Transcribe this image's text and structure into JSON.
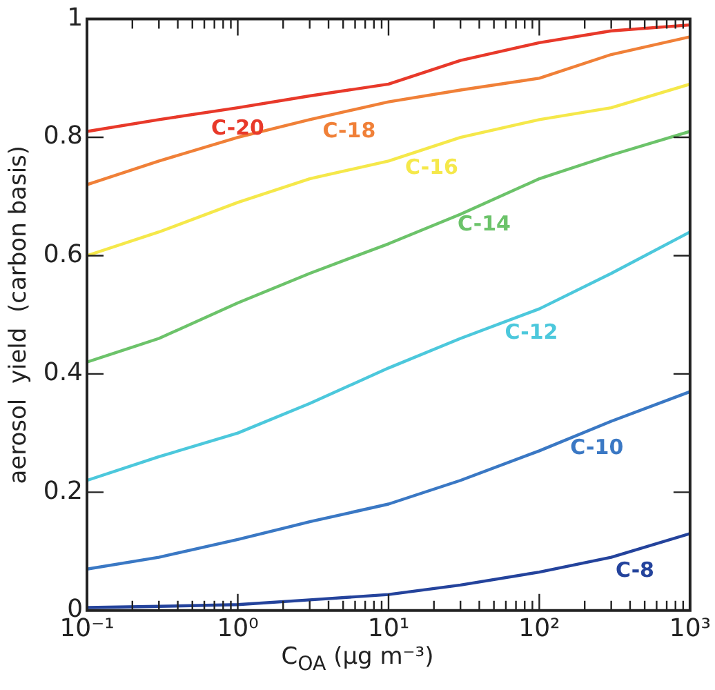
{
  "chart_data": {
    "type": "line",
    "xlabel": "C$_{OA}$ (µg m⁻³)",
    "ylabel": "aerosol  yield  (carbon basis)",
    "x": [
      0.1,
      0.3,
      1,
      3,
      10,
      30,
      100,
      300,
      1000
    ],
    "series": [
      {
        "name": "C-20",
        "color": "#e8392a",
        "values": [
          0.81,
          0.83,
          0.85,
          0.87,
          0.89,
          0.93,
          0.96,
          0.98,
          0.99
        ]
      },
      {
        "name": "C-18",
        "color": "#f08038",
        "values": [
          0.72,
          0.76,
          0.8,
          0.83,
          0.86,
          0.88,
          0.9,
          0.94,
          0.97
        ]
      },
      {
        "name": "C-16",
        "color": "#f5e84a",
        "values": [
          0.6,
          0.64,
          0.69,
          0.73,
          0.76,
          0.8,
          0.83,
          0.85,
          0.89
        ]
      },
      {
        "name": "C-14",
        "color": "#6cc36a",
        "values": [
          0.42,
          0.46,
          0.52,
          0.57,
          0.62,
          0.67,
          0.73,
          0.77,
          0.81
        ]
      },
      {
        "name": "C-12",
        "color": "#4cc8dc",
        "values": [
          0.22,
          0.26,
          0.3,
          0.35,
          0.41,
          0.46,
          0.51,
          0.57,
          0.64
        ]
      },
      {
        "name": "C-10",
        "color": "#3a78c4",
        "values": [
          0.07,
          0.09,
          0.12,
          0.15,
          0.18,
          0.22,
          0.27,
          0.32,
          0.37
        ]
      },
      {
        "name": "C-8",
        "color": "#24439c",
        "values": [
          0.005,
          0.007,
          0.01,
          0.018,
          0.027,
          0.043,
          0.065,
          0.09,
          0.13
        ]
      }
    ],
    "log": "x",
    "xlim": [
      0.1,
      1000
    ],
    "xticks": [
      {
        "value": 0.1,
        "label": "10⁻¹"
      },
      {
        "value": 0.2,
        "label": null
      },
      {
        "value": 0.3,
        "label": null
      },
      {
        "value": 0.4,
        "label": null
      },
      {
        "value": 0.5,
        "label": null
      },
      {
        "value": 0.6,
        "label": null
      },
      {
        "value": 0.7,
        "label": null
      },
      {
        "value": 0.8,
        "label": null
      },
      {
        "value": 0.9,
        "label": null
      },
      {
        "value": 1,
        "label": "10⁰"
      },
      {
        "value": 2,
        "label": null
      },
      {
        "value": 3,
        "label": null
      },
      {
        "value": 4,
        "label": null
      },
      {
        "value": 5,
        "label": null
      },
      {
        "value": 6,
        "label": null
      },
      {
        "value": 7,
        "label": null
      },
      {
        "value": 8,
        "label": null
      },
      {
        "value": 9,
        "label": null
      },
      {
        "value": 10,
        "label": "10¹"
      },
      {
        "value": 20,
        "label": null
      },
      {
        "value": 30,
        "label": null
      },
      {
        "value": 40,
        "label": null
      },
      {
        "value": 50,
        "label": null
      },
      {
        "value": 60,
        "label": null
      },
      {
        "value": 70,
        "label": null
      },
      {
        "value": 80,
        "label": null
      },
      {
        "value": 90,
        "label": null
      },
      {
        "value": 100,
        "label": "10²"
      },
      {
        "value": 200,
        "label": null
      },
      {
        "value": 300,
        "label": null
      },
      {
        "value": 400,
        "label": null
      },
      {
        "value": 500,
        "label": null
      },
      {
        "value": 600,
        "label": null
      },
      {
        "value": 700,
        "label": null
      },
      {
        "value": 800,
        "label": null
      },
      {
        "value": 900,
        "label": null
      },
      {
        "value": 1000,
        "label": "10³"
      }
    ],
    "ylim": [
      0,
      1
    ],
    "yticks": [
      0,
      {
        "value": 0.2,
        "label": "0.2"
      },
      {
        "value": 0.4,
        "label": "0.4"
      },
      {
        "value": 0.6,
        "label": "0.6"
      },
      {
        "value": 0.8,
        "label": "0.8"
      },
      1
    ],
    "grid": false,
    "legend": false,
    "marker": "none",
    "line_style": "solid"
  }
}
